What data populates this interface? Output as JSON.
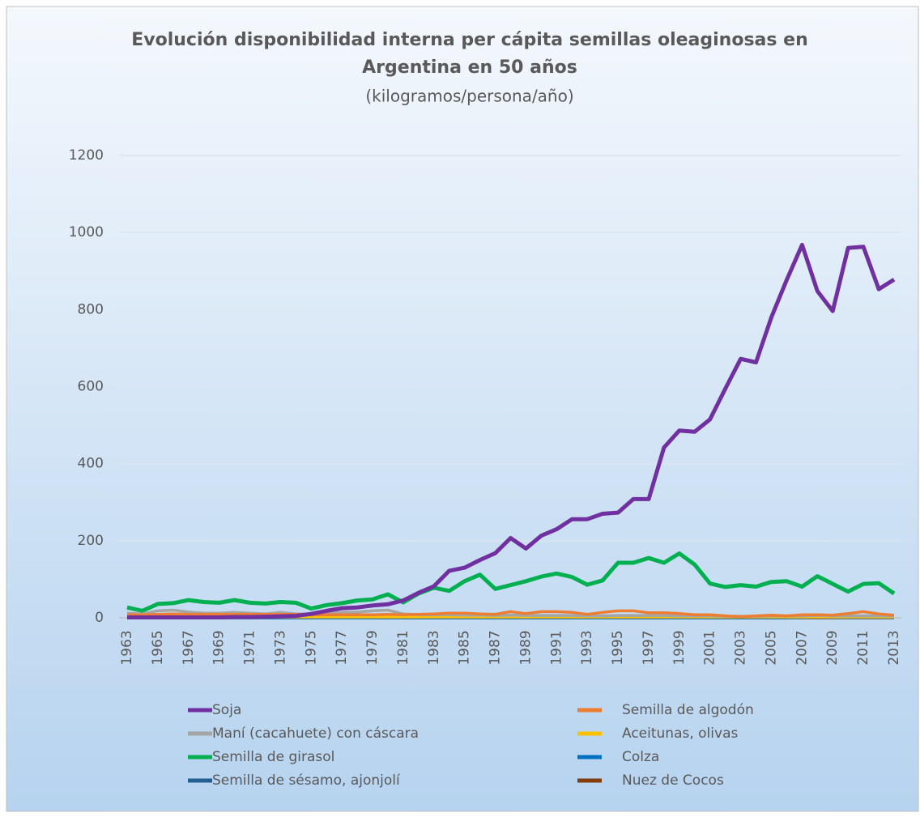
{
  "chart_data": {
    "type": "line",
    "title": [
      "Evolución disponibilidad  interna per cápita semillas oleaginosas en",
      "Argentina en 50 años"
    ],
    "subtitle": "(kilogramos/persona/año)",
    "categories": [
      1963,
      null,
      1965,
      null,
      1967,
      null,
      1969,
      null,
      1971,
      null,
      1973,
      null,
      1975,
      null,
      1977,
      null,
      1979,
      null,
      1981,
      null,
      1983,
      null,
      1985,
      null,
      1987,
      null,
      1989,
      null,
      1991,
      null,
      1993,
      null,
      1995,
      null,
      1997,
      null,
      1999,
      null,
      2001,
      null,
      2003,
      null,
      2005,
      null,
      2007,
      null,
      2009,
      null,
      2011,
      null,
      2013
    ],
    "ylim": [
      0,
      1200
    ],
    "yticks": [
      0,
      200,
      400,
      600,
      800,
      1000,
      1200
    ],
    "grid": true,
    "series": [
      {
        "name": "Soja",
        "color": "#7030a0",
        "values": [
          1,
          1,
          1,
          1,
          1,
          1,
          1,
          2,
          2,
          3,
          4,
          5,
          10,
          18,
          25,
          27,
          32,
          35,
          45,
          65,
          82,
          122,
          130,
          150,
          168,
          207,
          180,
          213,
          230,
          256,
          256,
          270,
          273,
          308,
          308,
          442,
          486,
          483,
          515,
          595,
          672,
          663,
          780,
          877,
          968,
          848,
          796,
          960,
          963,
          853,
          878
        ]
      },
      {
        "name": "Semilla de algodón",
        "color": "#ed7d31",
        "values": [
          8,
          8,
          9,
          10,
          9,
          9,
          9,
          9,
          9,
          9,
          9,
          9,
          8,
          8,
          8,
          8,
          8,
          9,
          8,
          9,
          10,
          12,
          12,
          10,
          9,
          16,
          11,
          16,
          16,
          14,
          9,
          14,
          18,
          18,
          13,
          13,
          11,
          8,
          8,
          5,
          3,
          5,
          7,
          5,
          8,
          8,
          7,
          11,
          16,
          10,
          7
        ]
      },
      {
        "name": "Maní (cacahuete) con cáscara",
        "color": "#a5a5a5",
        "values": [
          12,
          10,
          18,
          20,
          15,
          12,
          12,
          14,
          12,
          10,
          14,
          10,
          10,
          12,
          14,
          15,
          18,
          20,
          10,
          8,
          8,
          8,
          7,
          7,
          6,
          7,
          6,
          6,
          6,
          6,
          5,
          5,
          6,
          6,
          6,
          6,
          5,
          5,
          5,
          4,
          4,
          4,
          5,
          5,
          5,
          6,
          5,
          5,
          5,
          5,
          5
        ]
      },
      {
        "name": "Aceitunas, olivas",
        "color": "#ffc000",
        "values": [
          2,
          2,
          2,
          2,
          2,
          2,
          2,
          2,
          2,
          2,
          2,
          2,
          2,
          2,
          2,
          2,
          2,
          2,
          2,
          2,
          2,
          2,
          2,
          2,
          2,
          2,
          2,
          2,
          2,
          2,
          2,
          2,
          2,
          2,
          2,
          2,
          2,
          2,
          2,
          2,
          2,
          2,
          2,
          2,
          2,
          2,
          2,
          2,
          2,
          2,
          2
        ]
      },
      {
        "name": "Semilla de girasol",
        "color": "#00b050",
        "values": [
          27,
          18,
          36,
          38,
          46,
          41,
          39,
          46,
          39,
          37,
          41,
          39,
          24,
          33,
          38,
          45,
          48,
          61,
          40,
          63,
          78,
          70,
          95,
          112,
          75,
          85,
          95,
          107,
          115,
          106,
          86,
          97,
          143,
          143,
          155,
          143,
          167,
          138,
          89,
          80,
          85,
          81,
          93,
          95,
          81,
          108,
          88,
          68,
          88,
          90,
          63
        ]
      },
      {
        "name": "Colza",
        "color": "#0070c0",
        "values": [
          0,
          0,
          0,
          0,
          0,
          0,
          0,
          0,
          0,
          0,
          0,
          0,
          0,
          0,
          0,
          0,
          0,
          0,
          0,
          0,
          0,
          0,
          0,
          0,
          0,
          0,
          0,
          0,
          0,
          0,
          0,
          0,
          0,
          0,
          0,
          0,
          0,
          0,
          0,
          0,
          0,
          0,
          0,
          0,
          1,
          2,
          1,
          1,
          1,
          1,
          1
        ]
      },
      {
        "name": "Semilla de sésamo, ajonjolí",
        "color": "#255e91",
        "values": [
          1,
          1,
          1,
          1,
          1,
          1,
          1,
          1,
          1,
          1,
          1,
          1,
          1,
          1,
          1,
          1,
          1,
          1,
          1,
          1,
          1,
          1,
          1,
          1,
          1,
          1,
          1,
          1,
          1,
          1,
          1,
          1,
          1,
          1,
          1,
          1,
          1,
          1,
          1,
          1,
          1,
          1,
          1,
          1,
          1,
          1,
          1,
          1,
          1,
          1,
          1
        ]
      },
      {
        "name": "Nuez de Cocos",
        "color": "#843c0c",
        "values": [
          0,
          0,
          0,
          0,
          0,
          0,
          0,
          0,
          0,
          0,
          0,
          0,
          0,
          0,
          0,
          0,
          0,
          0,
          0,
          0,
          0,
          0,
          0,
          0,
          0,
          0,
          0,
          0,
          0,
          0,
          0,
          0,
          0,
          0,
          0,
          0,
          0,
          0,
          0,
          0,
          0,
          0,
          0,
          0,
          0,
          0,
          0,
          0,
          0,
          0,
          0
        ]
      }
    ]
  }
}
